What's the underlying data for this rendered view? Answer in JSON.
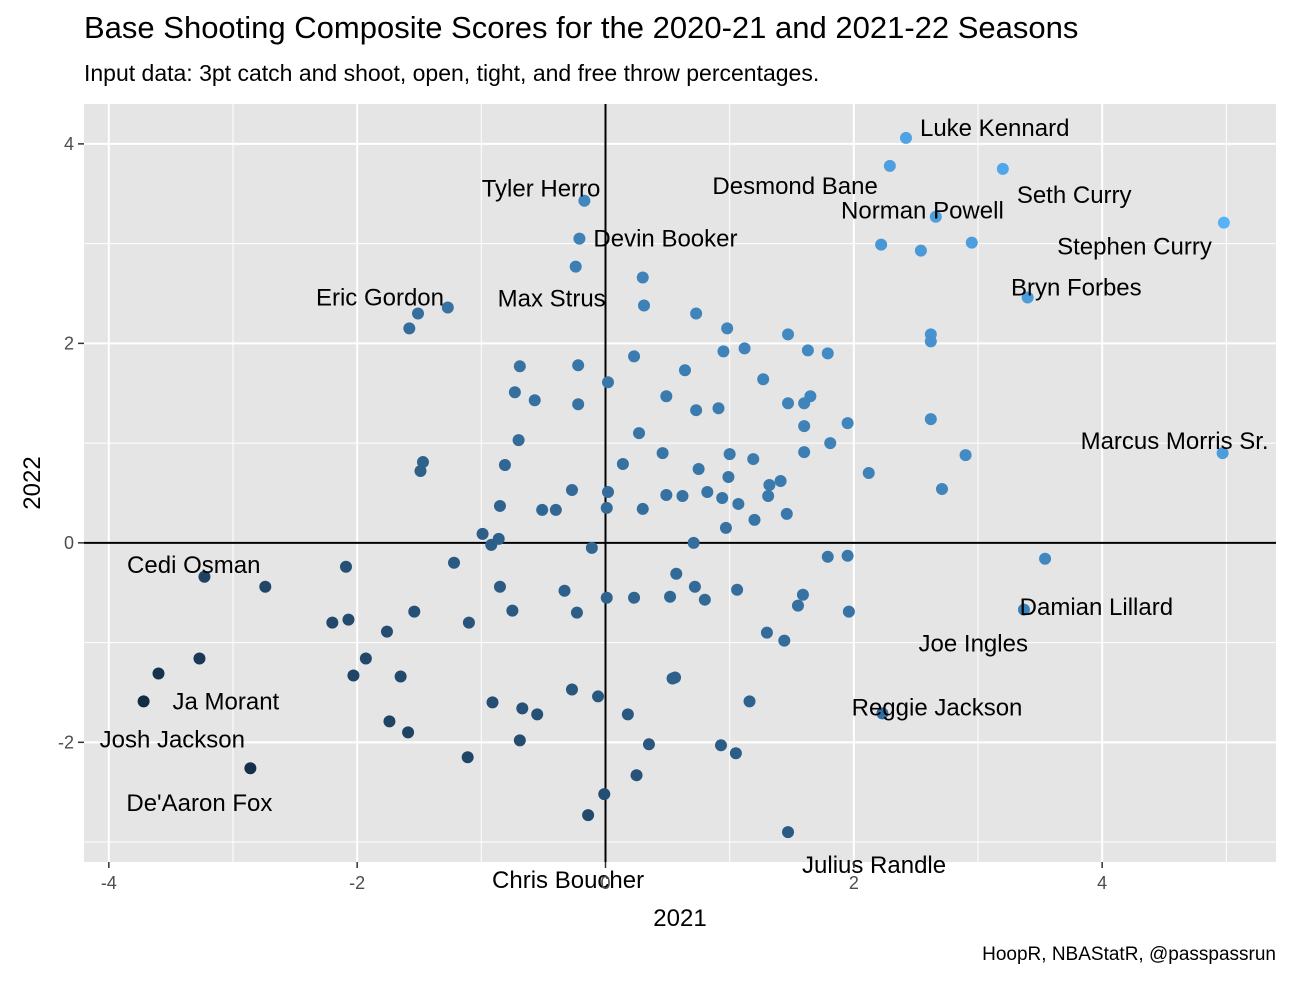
{
  "chart_data": {
    "type": "scatter",
    "title": "Base Shooting Composite Scores for the 2020-21 and 2021-22 Seasons",
    "subtitle": "Input data: 3pt catch and shoot, open, tight, and free throw percentages.",
    "caption": "HoopR, NBAStatR, @passpassrun",
    "xlabel": "2021",
    "ylabel": "2022",
    "xlim": [
      -4.2,
      5.4
    ],
    "ylim": [
      -3.2,
      4.4
    ],
    "xticks": [
      -4,
      -2,
      0,
      2,
      4
    ],
    "yticks": [
      -2,
      0,
      2,
      4
    ],
    "xtick_labels": [
      "-4",
      "-2",
      "0",
      "2",
      "4"
    ],
    "ytick_labels": [
      "-2",
      "0",
      "2",
      "4"
    ],
    "grid": true,
    "reference_lines": {
      "x": 0,
      "y": 0
    },
    "color_low": "#132b43",
    "color_high": "#56b1f7",
    "panel_color": "#e5e5e5",
    "points": [
      [
        2.42,
        4.06
      ],
      [
        2.29,
        3.78
      ],
      [
        3.2,
        3.75
      ],
      [
        2.66,
        3.27
      ],
      [
        4.98,
        3.21
      ],
      [
        2.22,
        2.99
      ],
      [
        2.54,
        2.93
      ],
      [
        2.95,
        3.01
      ],
      [
        3.4,
        2.46
      ],
      [
        2.62,
        2.09
      ],
      [
        2.62,
        2.02
      ],
      [
        2.62,
        1.24
      ],
      [
        2.9,
        0.88
      ],
      [
        2.71,
        0.54
      ],
      [
        4.97,
        0.9
      ],
      [
        3.54,
        -0.16
      ],
      [
        3.37,
        -0.67
      ],
      [
        2.23,
        -1.71
      ],
      [
        -0.17,
        3.43
      ],
      [
        -0.21,
        3.05
      ],
      [
        -0.24,
        2.77
      ],
      [
        0.3,
        2.66
      ],
      [
        0.31,
        2.38
      ],
      [
        -1.27,
        2.36
      ],
      [
        -1.51,
        2.3
      ],
      [
        -1.58,
        2.15
      ],
      [
        0.73,
        2.3
      ],
      [
        0.98,
        2.15
      ],
      [
        1.47,
        2.09
      ],
      [
        1.63,
        1.93
      ],
      [
        1.79,
        1.9
      ],
      [
        1.12,
        1.95
      ],
      [
        0.95,
        1.92
      ],
      [
        0.23,
        1.87
      ],
      [
        -0.22,
        1.78
      ],
      [
        -0.69,
        1.77
      ],
      [
        0.64,
        1.73
      ],
      [
        1.27,
        1.64
      ],
      [
        0.02,
        1.61
      ],
      [
        -0.73,
        1.51
      ],
      [
        -0.57,
        1.43
      ],
      [
        -0.22,
        1.39
      ],
      [
        0.49,
        1.47
      ],
      [
        1.65,
        1.47
      ],
      [
        1.47,
        1.4
      ],
      [
        1.6,
        1.4
      ],
      [
        0.73,
        1.33
      ],
      [
        0.91,
        1.35
      ],
      [
        1.95,
        1.2
      ],
      [
        1.6,
        1.17
      ],
      [
        0.27,
        1.1
      ],
      [
        -0.7,
        1.03
      ],
      [
        1.81,
        1.0
      ],
      [
        1.0,
        0.89
      ],
      [
        1.6,
        0.91
      ],
      [
        0.46,
        0.9
      ],
      [
        1.19,
        0.84
      ],
      [
        -1.47,
        0.81
      ],
      [
        -1.49,
        0.72
      ],
      [
        -0.81,
        0.78
      ],
      [
        0.14,
        0.79
      ],
      [
        0.75,
        0.74
      ],
      [
        2.12,
        0.7
      ],
      [
        0.99,
        0.66
      ],
      [
        1.32,
        0.58
      ],
      [
        1.41,
        0.62
      ],
      [
        0.82,
        0.51
      ],
      [
        1.31,
        0.47
      ],
      [
        0.94,
        0.45
      ],
      [
        0.49,
        0.48
      ],
      [
        0.62,
        0.47
      ],
      [
        -0.27,
        0.53
      ],
      [
        0.02,
        0.51
      ],
      [
        1.07,
        0.39
      ],
      [
        -0.85,
        0.37
      ],
      [
        -0.51,
        0.33
      ],
      [
        -0.4,
        0.33
      ],
      [
        0.01,
        0.35
      ],
      [
        0.3,
        0.34
      ],
      [
        1.2,
        0.23
      ],
      [
        1.46,
        0.29
      ],
      [
        0.97,
        0.15
      ],
      [
        -0.99,
        0.09
      ],
      [
        -0.86,
        0.04
      ],
      [
        -0.92,
        -0.02
      ],
      [
        0.71,
        0.0
      ],
      [
        -0.11,
        -0.05
      ],
      [
        1.79,
        -0.14
      ],
      [
        1.95,
        -0.13
      ],
      [
        -3.23,
        -0.34
      ],
      [
        -2.74,
        -0.44
      ],
      [
        -2.09,
        -0.24
      ],
      [
        -1.22,
        -0.2
      ],
      [
        0.57,
        -0.31
      ],
      [
        -0.85,
        -0.44
      ],
      [
        -0.33,
        -0.48
      ],
      [
        0.72,
        -0.44
      ],
      [
        1.06,
        -0.47
      ],
      [
        0.01,
        -0.55
      ],
      [
        0.23,
        -0.55
      ],
      [
        0.52,
        -0.54
      ],
      [
        0.8,
        -0.57
      ],
      [
        1.59,
        -0.52
      ],
      [
        1.55,
        -0.63
      ],
      [
        -1.54,
        -0.69
      ],
      [
        -0.75,
        -0.68
      ],
      [
        -0.23,
        -0.7
      ],
      [
        1.96,
        -0.69
      ],
      [
        -2.2,
        -0.8
      ],
      [
        -2.07,
        -0.77
      ],
      [
        -1.1,
        -0.8
      ],
      [
        -1.76,
        -0.89
      ],
      [
        1.3,
        -0.9
      ],
      [
        1.44,
        -0.98
      ],
      [
        -1.93,
        -1.16
      ],
      [
        -3.27,
        -1.16
      ],
      [
        -3.6,
        -1.31
      ],
      [
        -2.03,
        -1.33
      ],
      [
        -1.65,
        -1.34
      ],
      [
        0.56,
        -1.35
      ],
      [
        0.54,
        -1.36
      ],
      [
        -0.27,
        -1.47
      ],
      [
        -0.06,
        -1.54
      ],
      [
        -3.72,
        -1.59
      ],
      [
        -0.91,
        -1.6
      ],
      [
        -0.67,
        -1.66
      ],
      [
        -0.55,
        -1.72
      ],
      [
        0.18,
        -1.72
      ],
      [
        1.16,
        -1.59
      ],
      [
        -1.74,
        -1.79
      ],
      [
        -1.59,
        -1.9
      ],
      [
        -0.69,
        -1.98
      ],
      [
        0.35,
        -2.02
      ],
      [
        0.93,
        -2.03
      ],
      [
        1.05,
        -2.11
      ],
      [
        -1.11,
        -2.15
      ],
      [
        -2.86,
        -2.26
      ],
      [
        0.25,
        -2.33
      ],
      [
        -0.01,
        -2.52
      ],
      [
        -0.14,
        -2.73
      ],
      [
        1.47,
        -2.9
      ]
    ],
    "labels": [
      {
        "text": "Luke Kennard",
        "x": 2.42,
        "y": 4.06
      },
      {
        "text": "Seth Curry",
        "x": 3.2,
        "y": 3.75
      },
      {
        "text": "Desmond Bane",
        "x": 2.29,
        "y": 3.78
      },
      {
        "text": "Norman Powell",
        "x": 2.66,
        "y": 3.27
      },
      {
        "text": "Stephen Curry",
        "x": 4.98,
        "y": 3.21
      },
      {
        "text": "Bryn Forbes",
        "x": 3.4,
        "y": 2.46
      },
      {
        "text": "Marcus Morris Sr.",
        "x": 4.97,
        "y": 0.9
      },
      {
        "text": "Damian Lillard",
        "x": 3.54,
        "y": -0.16
      },
      {
        "text": "Joe Ingles",
        "x": 3.37,
        "y": -0.67
      },
      {
        "text": "Reggie Jackson",
        "x": 2.23,
        "y": -1.71
      },
      {
        "text": "Tyler Herro",
        "x": -0.17,
        "y": 3.43
      },
      {
        "text": "Devin Booker",
        "x": -0.21,
        "y": 3.05
      },
      {
        "text": "Eric Gordon",
        "x": -1.51,
        "y": 2.3
      },
      {
        "text": "Max Strus",
        "x": -0.24,
        "y": 2.77
      },
      {
        "text": "Cedi Osman",
        "x": -3.23,
        "y": -0.34
      },
      {
        "text": "Ja Morant",
        "x": -3.6,
        "y": -1.31
      },
      {
        "text": "Josh Jackson",
        "x": -3.72,
        "y": -1.59
      },
      {
        "text": "De'Aaron Fox",
        "x": -2.86,
        "y": -2.26
      },
      {
        "text": "Chris Boucher",
        "x": -0.14,
        "y": -2.73
      },
      {
        "text": "Julius Randle",
        "x": 1.47,
        "y": -2.9
      }
    ]
  }
}
